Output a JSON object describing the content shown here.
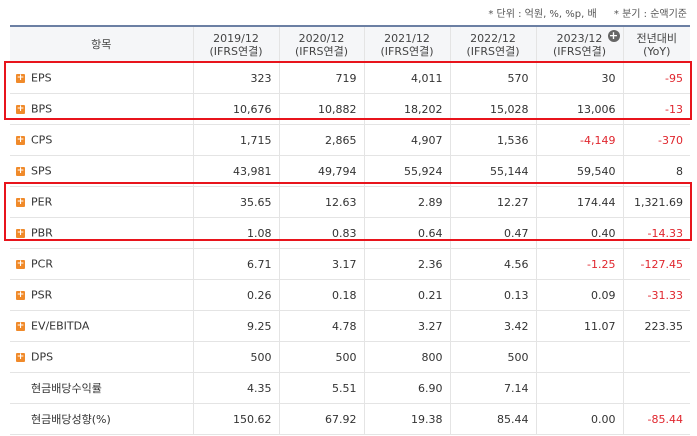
{
  "units": {
    "unit_note": "* 단위 : 억원, %, %p, 배",
    "basis_note": "* 분기 : 순액기준"
  },
  "header": {
    "item": "항목",
    "columns": [
      {
        "year": "2019/12",
        "basis": "(IFRS연결)"
      },
      {
        "year": "2020/12",
        "basis": "(IFRS연결)"
      },
      {
        "year": "2021/12",
        "basis": "(IFRS연결)"
      },
      {
        "year": "2022/12",
        "basis": "(IFRS연결)"
      },
      {
        "year": "2023/12",
        "basis": "(IFRS연결)"
      }
    ],
    "yoy_line1": "전년대비",
    "yoy_line2": "(YoY)",
    "add_icon_glyph": "+"
  },
  "rows": [
    {
      "label": "EPS",
      "expand": "+",
      "v": [
        "323",
        "719",
        "4,011",
        "570",
        "30"
      ],
      "yoy": "-95"
    },
    {
      "label": "BPS",
      "expand": "+",
      "v": [
        "10,676",
        "10,882",
        "18,202",
        "15,028",
        "13,006"
      ],
      "yoy": "-13"
    },
    {
      "label": "CPS",
      "expand": "+",
      "v": [
        "1,715",
        "2,865",
        "4,907",
        "1,536",
        "-4,149"
      ],
      "yoy": "-370"
    },
    {
      "label": "SPS",
      "expand": "+",
      "v": [
        "43,981",
        "49,794",
        "55,924",
        "55,144",
        "59,540"
      ],
      "yoy": "8"
    },
    {
      "label": "PER",
      "expand": "+",
      "v": [
        "35.65",
        "12.63",
        "2.89",
        "12.27",
        "174.44"
      ],
      "yoy": "1,321.69"
    },
    {
      "label": "PBR",
      "expand": "+",
      "v": [
        "1.08",
        "0.83",
        "0.64",
        "0.47",
        "0.40"
      ],
      "yoy": "-14.33"
    },
    {
      "label": "PCR",
      "expand": "+",
      "v": [
        "6.71",
        "3.17",
        "2.36",
        "4.56",
        "-1.25"
      ],
      "yoy": "-127.45"
    },
    {
      "label": "PSR",
      "expand": "+",
      "v": [
        "0.26",
        "0.18",
        "0.21",
        "0.13",
        "0.09"
      ],
      "yoy": "-31.33"
    },
    {
      "label": "EV/EBITDA",
      "expand": "+",
      "v": [
        "9.25",
        "4.78",
        "3.27",
        "3.42",
        "11.07"
      ],
      "yoy": "223.35"
    },
    {
      "label": "DPS",
      "expand": "+",
      "v": [
        "500",
        "500",
        "800",
        "500",
        ""
      ],
      "yoy": ""
    },
    {
      "label": "현금배당수익률",
      "expand": "",
      "v": [
        "4.35",
        "5.51",
        "6.90",
        "7.14",
        ""
      ],
      "yoy": ""
    },
    {
      "label": "현금배당성향(%)",
      "expand": "",
      "v": [
        "150.62",
        "67.92",
        "19.38",
        "85.44",
        "0.00"
      ],
      "yoy": "-85.44"
    }
  ],
  "colors": {
    "negative": "#e0262e",
    "highlight_border": "#e8141c",
    "expand_icon": "#f08a2a"
  }
}
